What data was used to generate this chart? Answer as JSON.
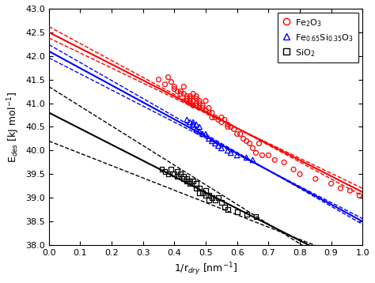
{
  "xlabel": "1/r$_{dry}$ [nm$^{-1}$]",
  "ylabel": "E$_{des}$ [kJ mol$^{-1}$]",
  "xlim": [
    0.0,
    1.0
  ],
  "ylim": [
    38.0,
    43.0
  ],
  "xticks": [
    0.0,
    0.1,
    0.2,
    0.3,
    0.4,
    0.5,
    0.6,
    0.7,
    0.8,
    0.9,
    1.0
  ],
  "yticks": [
    38.0,
    38.5,
    39.0,
    39.5,
    40.0,
    40.5,
    41.0,
    41.5,
    42.0,
    42.5,
    43.0
  ],
  "fe2o3_line_slope": -3.38,
  "fe2o3_line_intercept": 42.5,
  "fe2o3_conf_slope_upper": -3.18,
  "fe2o3_conf_intercept_upper": 42.38,
  "fe2o3_conf_slope_lower": -3.58,
  "fe2o3_conf_intercept_lower": 42.62,
  "fesi_line_slope": -3.6,
  "fesi_line_intercept": 42.1,
  "fesi_conf_slope_upper": -3.4,
  "fesi_conf_intercept_upper": 41.96,
  "fesi_conf_slope_lower": -3.8,
  "fesi_conf_intercept_lower": 42.24,
  "sio2_line_slope": -3.38,
  "sio2_line_intercept": 40.8,
  "sio2_conf_slope_upper": -2.6,
  "sio2_conf_intercept_upper": 40.2,
  "sio2_conf_slope_lower": -4.15,
  "sio2_conf_intercept_lower": 41.35,
  "fe2o3_x": [
    0.35,
    0.37,
    0.38,
    0.39,
    0.4,
    0.4,
    0.41,
    0.42,
    0.42,
    0.43,
    0.43,
    0.44,
    0.44,
    0.44,
    0.45,
    0.45,
    0.45,
    0.45,
    0.46,
    0.46,
    0.46,
    0.47,
    0.47,
    0.47,
    0.47,
    0.48,
    0.48,
    0.48,
    0.49,
    0.49,
    0.5,
    0.5,
    0.51,
    0.51,
    0.52,
    0.52,
    0.53,
    0.54,
    0.55,
    0.55,
    0.56,
    0.57,
    0.57,
    0.58,
    0.59,
    0.6,
    0.61,
    0.62,
    0.63,
    0.64,
    0.65,
    0.66,
    0.67,
    0.68,
    0.7,
    0.72,
    0.75,
    0.78,
    0.8,
    0.85,
    0.9,
    0.93,
    0.96,
    0.99
  ],
  "fe2o3_y": [
    41.5,
    41.4,
    41.55,
    41.45,
    41.35,
    41.3,
    41.25,
    41.25,
    41.2,
    41.35,
    41.2,
    41.15,
    41.1,
    41.05,
    41.15,
    41.1,
    41.05,
    41.0,
    41.2,
    41.05,
    40.95,
    41.15,
    41.1,
    41.0,
    40.95,
    41.05,
    41.0,
    40.9,
    40.95,
    40.9,
    41.05,
    40.85,
    40.8,
    40.9,
    40.8,
    40.7,
    40.7,
    40.65,
    40.6,
    40.7,
    40.65,
    40.55,
    40.5,
    40.5,
    40.45,
    40.35,
    40.35,
    40.25,
    40.2,
    40.15,
    40.05,
    39.95,
    40.15,
    39.9,
    39.9,
    39.8,
    39.75,
    39.6,
    39.5,
    39.4,
    39.3,
    39.2,
    39.15,
    39.05
  ],
  "fesi_x": [
    0.44,
    0.45,
    0.46,
    0.46,
    0.47,
    0.47,
    0.48,
    0.48,
    0.49,
    0.5,
    0.51,
    0.52,
    0.53,
    0.54,
    0.55,
    0.57,
    0.58,
    0.6,
    0.63,
    0.65
  ],
  "fesi_y": [
    40.65,
    40.6,
    40.6,
    40.55,
    40.55,
    40.45,
    40.5,
    40.4,
    40.35,
    40.35,
    40.25,
    40.2,
    40.15,
    40.1,
    40.05,
    40.0,
    39.95,
    39.9,
    39.85,
    39.8
  ],
  "sio2_x": [
    0.36,
    0.37,
    0.38,
    0.39,
    0.4,
    0.41,
    0.41,
    0.42,
    0.43,
    0.43,
    0.44,
    0.44,
    0.45,
    0.45,
    0.46,
    0.47,
    0.47,
    0.48,
    0.48,
    0.49,
    0.5,
    0.5,
    0.51,
    0.51,
    0.52,
    0.53,
    0.54,
    0.55,
    0.56,
    0.57,
    0.6,
    0.63,
    0.66
  ],
  "sio2_y": [
    39.6,
    39.55,
    39.5,
    39.6,
    39.5,
    39.55,
    39.45,
    39.5,
    39.45,
    39.4,
    39.4,
    39.35,
    39.35,
    39.3,
    39.35,
    39.3,
    39.2,
    39.2,
    39.1,
    39.1,
    39.15,
    39.05,
    39.05,
    38.95,
    39.0,
    38.95,
    39.0,
    38.9,
    38.8,
    38.75,
    38.7,
    38.65,
    38.6
  ],
  "fe2o3_color": "#ff0000",
  "fesi_color": "#0000ff",
  "sio2_color": "#000000",
  "legend_labels": [
    "Fe$_2$O$_3$",
    "Fe$_{0.65}$Si$_{0.35}$O$_3$",
    "SiO$_2$"
  ]
}
